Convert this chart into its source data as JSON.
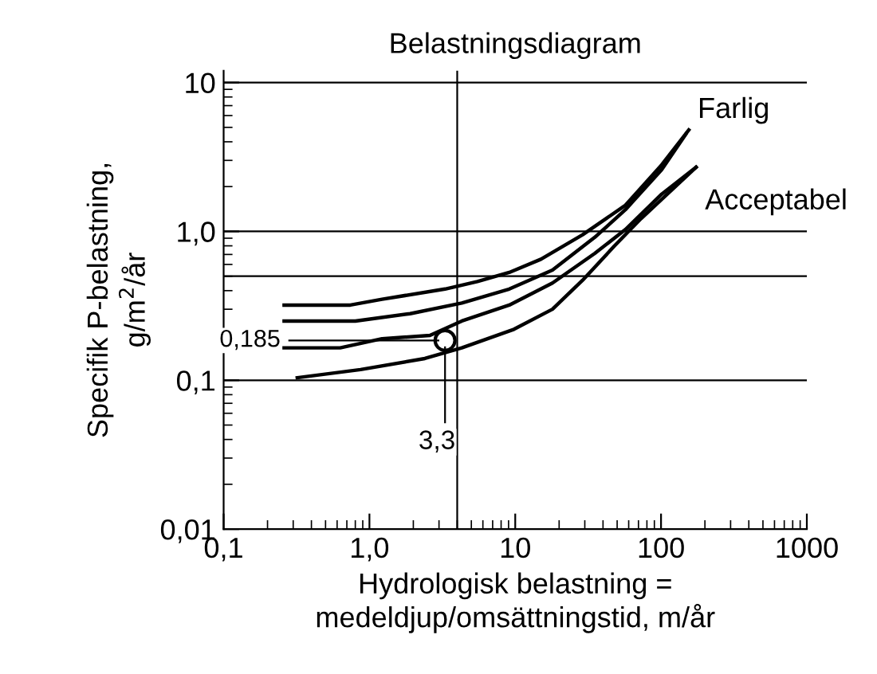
{
  "chart_data": {
    "type": "line",
    "title": "Belastningsdiagram",
    "xlabel": "Hydrologisk belastning =\nmedeldjup/omsättningstid, m/år",
    "ylabel": "Specifik P-belastning,\ng/m$^{2}$/år",
    "log": "xy",
    "xlim": [
      0.1,
      1000
    ],
    "ylim": [
      0.01,
      12
    ],
    "xticks": [
      {
        "value": 0.1,
        "label": "0,1"
      },
      {
        "value": 1,
        "label": "1,0"
      },
      10,
      100,
      1000
    ],
    "yticks": [
      {
        "value": 0.01,
        "label": "0,01"
      },
      {
        "value": 0.1,
        "label": "0,1"
      },
      {
        "value": 1,
        "label": "1,0"
      },
      10
    ],
    "grid": false,
    "marker": "none",
    "line_style": "solid",
    "ref_lines": [
      {
        "axis": "y",
        "value": 0.1,
        "color": "#000000"
      },
      {
        "axis": "y",
        "value": 0.5,
        "color": "#000000"
      },
      {
        "axis": "y",
        "value": 1,
        "color": "#000000"
      },
      {
        "axis": "y",
        "value": 10,
        "color": "#000000"
      },
      {
        "axis": "x",
        "value": 4,
        "color": "#000000"
      }
    ],
    "series": [
      {
        "name": "Farlig",
        "color": "#000000",
        "x": [
          0.26,
          0.74,
          1.22,
          3.3,
          5.5,
          9.1,
          15,
          29,
          57,
          101,
          155
        ],
        "values": [
          0.32,
          0.32,
          0.35,
          0.41,
          0.46,
          0.53,
          0.65,
          0.95,
          1.5,
          2.8,
          4.8
        ]
      },
      {
        "color": "#000000",
        "x": [
          0.26,
          0.8,
          1.9,
          4.3,
          9.1,
          18,
          35,
          57,
          101,
          148
        ],
        "values": [
          0.25,
          0.25,
          0.28,
          0.33,
          0.41,
          0.55,
          0.91,
          1.4,
          2.6,
          4.5
        ]
      },
      {
        "name": "Acceptabel",
        "color": "#000000",
        "x": [
          0.26,
          0.63,
          1.22,
          2.6,
          4.3,
          9.1,
          18,
          35,
          57,
          101,
          174
        ],
        "values": [
          0.165,
          0.165,
          0.19,
          0.2,
          0.25,
          0.32,
          0.45,
          0.71,
          1.03,
          1.78,
          2.7
        ]
      },
      {
        "color": "#000000",
        "x": [
          0.32,
          0.87,
          2.4,
          4.3,
          9.8,
          18,
          29,
          48,
          73,
          174
        ],
        "values": [
          0.104,
          0.118,
          0.14,
          0.165,
          0.22,
          0.3,
          0.47,
          0.8,
          1.22,
          2.7
        ]
      },
      {
        "type": "scatter",
        "color": "#000000",
        "marker": "circle",
        "x": [
          3.3
        ],
        "values": [
          0.185
        ]
      }
    ],
    "annotations": [
      {
        "text": "0,185",
        "x": 3.3,
        "y": 0.185
      },
      {
        "text": "3,3",
        "x": 3.3,
        "y": 0.185
      }
    ]
  }
}
